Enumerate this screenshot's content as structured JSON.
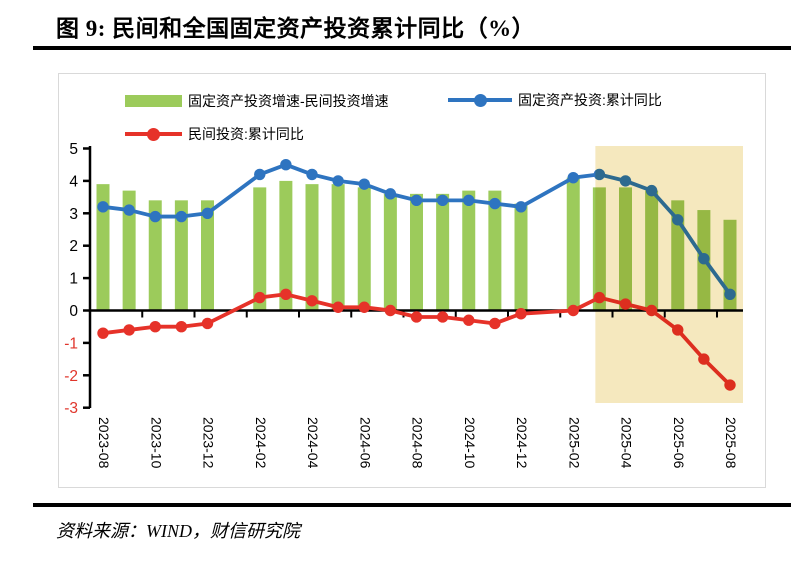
{
  "header": {
    "title": "图 9:  民间和全国固定资产投资累计同比（%）"
  },
  "footer": {
    "source": "资料来源：WIND，财信研究院"
  },
  "colors": {
    "bar_green": "#9CCB5B",
    "line_blue": "#2E74C0",
    "line_red": "#E63229",
    "negative_tick_red": "#E0352B",
    "highlight_yellow": "#F5E8BE",
    "panel_border": "#D9D9D9",
    "axis_black": "#000000"
  },
  "chart_data": {
    "type": "bar+line combo",
    "title": "图 9:  民间和全国固定资产投资累计同比（%）",
    "xlabel": "",
    "ylabel": "",
    "ylim": [
      -3,
      5
    ],
    "grid": false,
    "legend_position": "top",
    "categories": [
      "2023-08",
      "2023-09",
      "2023-10",
      "2023-11",
      "2023-12",
      "2024-02",
      "2024-03",
      "2024-04",
      "2024-05",
      "2024-06",
      "2024-07",
      "2024-08",
      "2024-09",
      "2024-10",
      "2024-11",
      "2024-12",
      "2025-02",
      "2025-03",
      "2025-04",
      "2025-05",
      "2025-06",
      "2025-07",
      "2025-08"
    ],
    "note": "January months are not published and are skipped on the time axis",
    "series": [
      {
        "key": "gap-bars",
        "name": "固定资产投资增速-民间投资增速",
        "type": "bar",
        "color": "#9CCB5B",
        "values": [
          3.9,
          3.7,
          3.4,
          3.4,
          3.4,
          3.8,
          4.0,
          3.9,
          3.9,
          3.8,
          3.6,
          3.6,
          3.6,
          3.7,
          3.7,
          3.3,
          4.1,
          3.8,
          3.8,
          3.7,
          3.4,
          3.1,
          2.8
        ]
      },
      {
        "key": "fai",
        "name": "固定资产投资:累计同比",
        "type": "line",
        "color": "#2E74C0",
        "values": [
          3.2,
          3.1,
          2.9,
          2.9,
          3.0,
          4.2,
          4.5,
          4.2,
          4.0,
          3.9,
          3.6,
          3.4,
          3.4,
          3.4,
          3.3,
          3.2,
          4.1,
          4.2,
          4.0,
          3.7,
          2.8,
          1.6,
          0.5
        ]
      },
      {
        "key": "private",
        "name": "民间投资:累计同比",
        "type": "line",
        "color": "#E63229",
        "values": [
          -0.7,
          -0.6,
          -0.5,
          -0.5,
          -0.4,
          0.4,
          0.5,
          0.3,
          0.1,
          0.1,
          0.0,
          -0.2,
          -0.2,
          -0.3,
          -0.4,
          -0.1,
          0.0,
          0.4,
          0.2,
          0.0,
          -0.6,
          -1.5,
          -2.3
        ]
      }
    ],
    "x_tick_labels": [
      "2023-08",
      "2023-10",
      "2023-12",
      "2024-02",
      "2024-04",
      "2024-06",
      "2024-08",
      "2024-10",
      "2024-12",
      "2025-02",
      "2025-04",
      "2025-06",
      "2025-08"
    ],
    "y_axis": {
      "ticks": [
        5,
        4,
        3,
        2,
        1,
        0,
        -1,
        -2,
        -3
      ],
      "negative_color": "#E0352B",
      "positive_color": "#000000"
    },
    "highlight": {
      "from": "2025-03",
      "to": "2025-08",
      "color": "#F5E8BE"
    }
  }
}
